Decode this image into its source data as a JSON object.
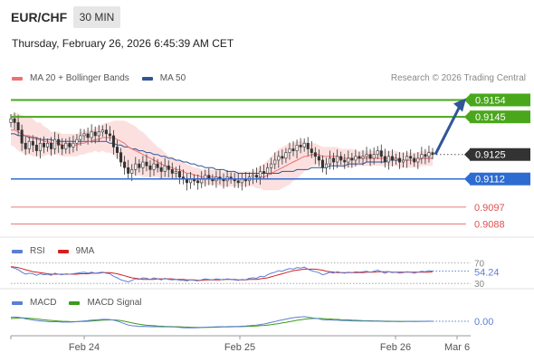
{
  "header": {
    "symbol": "EUR/CHF",
    "timeframe": "30 MIN",
    "datetime": "Thursday, February 26, 2026 6:45:39 AM CET"
  },
  "legend_main": [
    {
      "label": "MA 20 + Bollinger Bands",
      "color": "#f07070"
    },
    {
      "label": "MA 50",
      "color": "#2f5597"
    }
  ],
  "research_label": "Research © 2026 Trading Central",
  "legend_rsi": [
    {
      "label": "RSI",
      "color": "#5b7fd6"
    },
    {
      "label": "9MA",
      "color": "#d62020"
    }
  ],
  "legend_macd": [
    {
      "label": "MACD",
      "color": "#5b7fd6"
    },
    {
      "label": "MACD Signal",
      "color": "#3d9a1a"
    }
  ],
  "colors": {
    "resistance": "#4aa71c",
    "support": "#2e6cd1",
    "target": "#e05050",
    "current": "#333333",
    "candle_up": "#333333",
    "bb_fill": "#fbd6d6",
    "arrow": "#2f5597"
  },
  "chart_data": [
    {
      "type": "candlestick",
      "ylim": [
        0.9083,
        0.916
      ],
      "x_ticks": [
        "Feb 24",
        "Feb 25",
        "Feb 26",
        "Mar 6"
      ],
      "levels": [
        {
          "value": 0.9154,
          "label": "0.9154",
          "kind": "resistance"
        },
        {
          "value": 0.9145,
          "label": "0.9145",
          "kind": "resistance"
        },
        {
          "value": 0.9125,
          "label": "0.9125",
          "kind": "current"
        },
        {
          "value": 0.9112,
          "label": "0.9112",
          "kind": "support"
        },
        {
          "value": 0.9097,
          "label": "0.9097",
          "kind": "target"
        },
        {
          "value": 0.9088,
          "label": "0.9088",
          "kind": "target"
        }
      ],
      "close": [
        0.9144,
        0.9142,
        0.9138,
        0.9131,
        0.9128,
        0.9132,
        0.913,
        0.9127,
        0.9131,
        0.9129,
        0.9131,
        0.9128,
        0.9133,
        0.913,
        0.9128,
        0.9131,
        0.9129,
        0.9131,
        0.9133,
        0.9135,
        0.9136,
        0.9134,
        0.9137,
        0.9135,
        0.9137,
        0.9138,
        0.9136,
        0.9135,
        0.9129,
        0.9126,
        0.9121,
        0.9118,
        0.9115,
        0.9117,
        0.912,
        0.9118,
        0.9121,
        0.9119,
        0.9117,
        0.912,
        0.9118,
        0.9116,
        0.9119,
        0.9117,
        0.9115,
        0.9116,
        0.9113,
        0.9112,
        0.911,
        0.9112,
        0.9111,
        0.911,
        0.9112,
        0.9114,
        0.9112,
        0.9111,
        0.9113,
        0.9112,
        0.9111,
        0.9113,
        0.9112,
        0.9111,
        0.911,
        0.9112,
        0.9111,
        0.9113,
        0.9114,
        0.9113,
        0.9116,
        0.9115,
        0.9118,
        0.912,
        0.9122,
        0.9124,
        0.9123,
        0.9126,
        0.9128,
        0.9127,
        0.913,
        0.9129,
        0.9131,
        0.9128,
        0.9126,
        0.9124,
        0.9122,
        0.9118,
        0.912,
        0.9123,
        0.9121,
        0.9124,
        0.9122,
        0.9121,
        0.9123,
        0.9122,
        0.9124,
        0.9123,
        0.9124,
        0.9125,
        0.9123,
        0.9125,
        0.9127,
        0.9124,
        0.9121,
        0.9124,
        0.9122,
        0.9123,
        0.9121,
        0.9122,
        0.9124,
        0.9123,
        0.9121,
        0.9123,
        0.9125,
        0.9124,
        0.9126,
        0.9125
      ],
      "ma20": [
        0.9138,
        0.9138,
        0.9137,
        0.9136,
        0.9135,
        0.9135,
        0.9134,
        0.9133,
        0.9133,
        0.9132,
        0.9132,
        0.9131,
        0.9131,
        0.9131,
        0.913,
        0.913,
        0.913,
        0.913,
        0.913,
        0.9131,
        0.9131,
        0.9132,
        0.9132,
        0.9133,
        0.9133,
        0.9134,
        0.9134,
        0.9134,
        0.9134,
        0.9133,
        0.9132,
        0.9131,
        0.9129,
        0.9128,
        0.9127,
        0.9126,
        0.9125,
        0.9124,
        0.9123,
        0.9122,
        0.9121,
        0.912,
        0.9119,
        0.9118,
        0.9118,
        0.9117,
        0.9117,
        0.9116,
        0.9115,
        0.9115,
        0.9114,
        0.9114,
        0.9113,
        0.9113,
        0.9113,
        0.9113,
        0.9113,
        0.9112,
        0.9112,
        0.9112,
        0.9112,
        0.9112,
        0.9112,
        0.9112,
        0.9112,
        0.9112,
        0.9112,
        0.9112,
        0.9113,
        0.9113,
        0.9114,
        0.9115,
        0.9116,
        0.9117,
        0.9118,
        0.9119,
        0.912,
        0.9121,
        0.9122,
        0.9123,
        0.9124,
        0.9124,
        0.9125,
        0.9125,
        0.9125,
        0.9124,
        0.9124,
        0.9124,
        0.9124,
        0.9124,
        0.9123,
        0.9123,
        0.9123,
        0.9123,
        0.9123,
        0.9123,
        0.9123,
        0.9123,
        0.9123,
        0.9123,
        0.9123,
        0.9123,
        0.9123,
        0.9123,
        0.9123,
        0.9123,
        0.9122,
        0.9122,
        0.9122,
        0.9122,
        0.9122,
        0.9122,
        0.9123,
        0.9123,
        0.9123,
        0.9123
      ],
      "ma50": [
        0.9136,
        0.9136,
        0.9135,
        0.9135,
        0.9135,
        0.9134,
        0.9134,
        0.9134,
        0.9133,
        0.9133,
        0.9133,
        0.9133,
        0.9132,
        0.9132,
        0.9132,
        0.9132,
        0.9132,
        0.9132,
        0.9132,
        0.9132,
        0.9132,
        0.9132,
        0.9132,
        0.9132,
        0.9132,
        0.9132,
        0.9132,
        0.9131,
        0.9131,
        0.913,
        0.913,
        0.9129,
        0.9129,
        0.9128,
        0.9128,
        0.9127,
        0.9127,
        0.9126,
        0.9126,
        0.9125,
        0.9125,
        0.9124,
        0.9124,
        0.9123,
        0.9123,
        0.9122,
        0.9122,
        0.9121,
        0.9121,
        0.912,
        0.912,
        0.9119,
        0.9119,
        0.9118,
        0.9118,
        0.9118,
        0.9117,
        0.9117,
        0.9117,
        0.9116,
        0.9116,
        0.9116,
        0.9115,
        0.9115,
        0.9115,
        0.9115,
        0.9115,
        0.9115,
        0.9115,
        0.9115,
        0.9115,
        0.9115,
        0.9115,
        0.9115,
        0.9116,
        0.9116,
        0.9116,
        0.9116,
        0.9117,
        0.9117,
        0.9117,
        0.9117,
        0.9118,
        0.9118,
        0.9118,
        0.9118,
        0.9118,
        0.9119,
        0.9119,
        0.9119,
        0.9119,
        0.9119,
        0.912,
        0.912,
        0.912,
        0.912,
        0.912,
        0.9121,
        0.9121,
        0.9121,
        0.9121,
        0.9121,
        0.9121,
        0.9122,
        0.9122,
        0.9122,
        0.9122,
        0.9122,
        0.9122,
        0.9122,
        0.9122,
        0.9122,
        0.9123,
        0.9123,
        0.9123,
        0.9123
      ],
      "bb_width": [
        0.0008,
        0.0009,
        0.001,
        0.001,
        0.001,
        0.001,
        0.001,
        0.0009,
        0.0009,
        0.0008,
        0.0007,
        0.0006,
        0.0006,
        0.0006,
        0.0006,
        0.0006,
        0.0006,
        0.0006,
        0.0006,
        0.0006,
        0.0006,
        0.0006,
        0.0006,
        0.0006,
        0.0007,
        0.0007,
        0.0008,
        0.0008,
        0.0009,
        0.001,
        0.0011,
        0.0012,
        0.0013,
        0.0013,
        0.0013,
        0.0012,
        0.0012,
        0.0011,
        0.001,
        0.0009,
        0.0008,
        0.0008,
        0.0007,
        0.0006,
        0.0006,
        0.0005,
        0.0005,
        0.0005,
        0.0005,
        0.0004,
        0.0004,
        0.0004,
        0.0004,
        0.0004,
        0.0004,
        0.0004,
        0.0004,
        0.0004,
        0.0004,
        0.0004,
        0.0004,
        0.0004,
        0.0004,
        0.0004,
        0.0004,
        0.0004,
        0.0004,
        0.0005,
        0.0006,
        0.0007,
        0.0008,
        0.0009,
        0.001,
        0.0011,
        0.0011,
        0.0011,
        0.0011,
        0.001,
        0.001,
        0.0009,
        0.0008,
        0.0007,
        0.0006,
        0.0006,
        0.0005,
        0.0005,
        0.0005,
        0.0005,
        0.0005,
        0.0005,
        0.0005,
        0.0005,
        0.0005,
        0.0005,
        0.0004,
        0.0004,
        0.0004,
        0.0004,
        0.0004,
        0.0004,
        0.0004,
        0.0004,
        0.0004,
        0.0004,
        0.0004,
        0.0004,
        0.0004,
        0.0004,
        0.0004,
        0.0004,
        0.0004,
        0.0004,
        0.0004,
        0.0004,
        0.0004,
        0.0004
      ],
      "projection": {
        "from": 0.9125,
        "to": 0.9154
      }
    },
    {
      "type": "line",
      "name": "RSI",
      "ylim": [
        25,
        80
      ],
      "levels": [
        {
          "value": 70,
          "label": "70"
        },
        {
          "value": 30,
          "label": "30"
        }
      ],
      "last_label": "54.24",
      "rsi": [
        62,
        60,
        57,
        52,
        48,
        50,
        49,
        46,
        49,
        47,
        48,
        46,
        50,
        48,
        47,
        49,
        48,
        49,
        50,
        51,
        52,
        50,
        52,
        50,
        51,
        52,
        50,
        49,
        44,
        41,
        37,
        35,
        33,
        36,
        39,
        38,
        41,
        40,
        38,
        41,
        39,
        37,
        40,
        38,
        37,
        38,
        36,
        36,
        35,
        37,
        36,
        35,
        37,
        39,
        38,
        37,
        39,
        38,
        37,
        39,
        38,
        37,
        36,
        38,
        37,
        40,
        41,
        40,
        44,
        43,
        47,
        50,
        52,
        55,
        54,
        57,
        59,
        58,
        61,
        60,
        62,
        58,
        55,
        53,
        51,
        47,
        49,
        52,
        50,
        53,
        51,
        50,
        52,
        51,
        53,
        52,
        53,
        54,
        52,
        54,
        56,
        53,
        50,
        53,
        51,
        52,
        50,
        51,
        53,
        52,
        50,
        52,
        54,
        53,
        55,
        54
      ],
      "ma9": [
        63,
        62,
        61,
        59,
        57,
        55,
        53,
        52,
        51,
        50,
        49,
        48,
        48,
        48,
        48,
        48,
        48,
        48,
        48,
        49,
        49,
        49,
        50,
        50,
        50,
        51,
        51,
        51,
        50,
        49,
        47,
        45,
        43,
        41,
        40,
        39,
        38,
        38,
        38,
        38,
        39,
        39,
        39,
        39,
        39,
        38,
        38,
        38,
        37,
        37,
        37,
        36,
        36,
        37,
        37,
        37,
        37,
        37,
        38,
        38,
        38,
        38,
        37,
        37,
        37,
        38,
        38,
        38,
        39,
        40,
        41,
        43,
        45,
        47,
        49,
        51,
        53,
        55,
        56,
        57,
        58,
        58,
        58,
        58,
        57,
        56,
        54,
        53,
        52,
        51,
        51,
        51,
        51,
        51,
        51,
        51,
        51,
        52,
        52,
        52,
        53,
        53,
        53,
        53,
        52,
        52,
        52,
        52,
        52,
        52,
        52,
        52,
        52,
        52,
        52,
        53
      ]
    },
    {
      "type": "line",
      "name": "MACD",
      "ylim": [
        -1.0,
        1.0
      ],
      "last_label": "0.00",
      "macd": [
        0.3,
        0.32,
        0.3,
        0.25,
        0.18,
        0.14,
        0.1,
        0.05,
        0.03,
        0.0,
        -0.02,
        -0.04,
        -0.03,
        -0.04,
        -0.06,
        -0.05,
        -0.06,
        -0.05,
        -0.03,
        0.0,
        0.03,
        0.05,
        0.08,
        0.1,
        0.12,
        0.14,
        0.14,
        0.13,
        0.08,
        0.02,
        -0.08,
        -0.18,
        -0.28,
        -0.33,
        -0.35,
        -0.38,
        -0.37,
        -0.38,
        -0.4,
        -0.39,
        -0.4,
        -0.41,
        -0.4,
        -0.41,
        -0.42,
        -0.43,
        -0.45,
        -0.47,
        -0.48,
        -0.48,
        -0.48,
        -0.47,
        -0.46,
        -0.44,
        -0.43,
        -0.42,
        -0.41,
        -0.4,
        -0.4,
        -0.39,
        -0.38,
        -0.38,
        -0.38,
        -0.36,
        -0.35,
        -0.33,
        -0.3,
        -0.28,
        -0.24,
        -0.2,
        -0.14,
        -0.08,
        -0.02,
        0.05,
        0.1,
        0.16,
        0.22,
        0.26,
        0.3,
        0.32,
        0.34,
        0.3,
        0.26,
        0.22,
        0.18,
        0.12,
        0.1,
        0.1,
        0.08,
        0.08,
        0.06,
        0.05,
        0.05,
        0.03,
        0.03,
        0.02,
        0.02,
        0.02,
        0.01,
        0.01,
        0.02,
        0.0,
        -0.02,
        -0.01,
        -0.02,
        -0.02,
        -0.03,
        -0.02,
        -0.01,
        -0.01,
        -0.02,
        -0.01,
        0.0,
        0.0,
        0.01,
        0.0
      ],
      "signal": [
        0.2,
        0.22,
        0.24,
        0.25,
        0.24,
        0.22,
        0.2,
        0.17,
        0.14,
        0.11,
        0.08,
        0.06,
        0.04,
        0.02,
        0.0,
        -0.01,
        -0.02,
        -0.03,
        -0.03,
        -0.02,
        -0.01,
        0.0,
        0.02,
        0.04,
        0.06,
        0.08,
        0.09,
        0.1,
        0.1,
        0.08,
        0.05,
        0.0,
        -0.06,
        -0.12,
        -0.17,
        -0.22,
        -0.26,
        -0.29,
        -0.31,
        -0.33,
        -0.35,
        -0.36,
        -0.37,
        -0.38,
        -0.39,
        -0.4,
        -0.41,
        -0.42,
        -0.43,
        -0.44,
        -0.45,
        -0.45,
        -0.45,
        -0.45,
        -0.45,
        -0.44,
        -0.44,
        -0.43,
        -0.42,
        -0.42,
        -0.41,
        -0.4,
        -0.4,
        -0.39,
        -0.38,
        -0.37,
        -0.36,
        -0.35,
        -0.33,
        -0.31,
        -0.28,
        -0.25,
        -0.21,
        -0.17,
        -0.12,
        -0.08,
        -0.03,
        0.02,
        0.07,
        0.11,
        0.15,
        0.18,
        0.2,
        0.21,
        0.21,
        0.2,
        0.18,
        0.17,
        0.15,
        0.14,
        0.12,
        0.11,
        0.1,
        0.08,
        0.07,
        0.06,
        0.05,
        0.04,
        0.04,
        0.03,
        0.03,
        0.02,
        0.01,
        0.01,
        0.0,
        0.0,
        -0.01,
        -0.01,
        -0.01,
        -0.01,
        -0.01,
        -0.01,
        -0.01,
        -0.01,
        0.0,
        0.0
      ]
    }
  ]
}
